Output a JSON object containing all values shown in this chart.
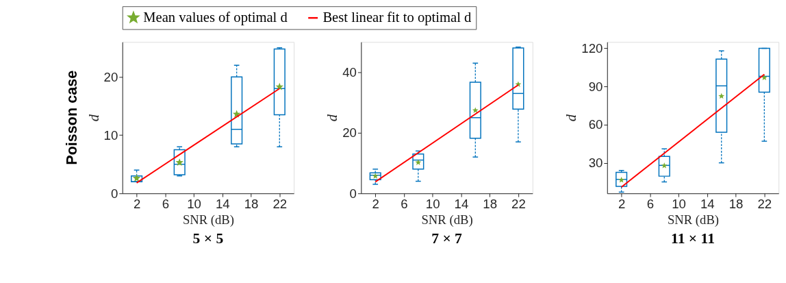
{
  "chart_data": [
    {
      "type": "box",
      "title": "5 × 5",
      "xlabel": "SNR (dB)",
      "ylabel": "d",
      "xlim": [
        0,
        24
      ],
      "ylim": [
        0,
        26
      ],
      "xticks": [
        2,
        6,
        10,
        14,
        18,
        22
      ],
      "yticks": [
        0,
        10,
        20
      ],
      "grid": false,
      "legend": "top",
      "annotations": [
        "Poisson case"
      ],
      "x": [
        2,
        8,
        16,
        22
      ],
      "series": [
        {
          "type": "box",
          "color": "#0072bd",
          "boxes": [
            {
              "low": 2,
              "q1": 2,
              "median": 2,
              "q3": 3,
              "high": 4
            },
            {
              "low": 3,
              "q1": 3.2,
              "median": 5,
              "q3": 7.5,
              "high": 8
            },
            {
              "low": 8,
              "q1": 8.5,
              "median": 11,
              "q3": 20,
              "high": 22
            },
            {
              "low": 8,
              "q1": 13.5,
              "median": 18,
              "q3": 24.8,
              "high": 25
            }
          ]
        },
        {
          "type": "scatter",
          "name": "Mean values of optimal d",
          "color": "#77ac30",
          "marker": "star",
          "x": [
            2,
            8,
            16,
            22
          ],
          "values": [
            2.6,
            5.3,
            13.6,
            18.3
          ]
        },
        {
          "type": "line",
          "name": "Best linear fit to optimal d",
          "color": "#ff0000",
          "line_style": "solid",
          "x": [
            2,
            22
          ],
          "values": [
            1.8,
            18
          ]
        }
      ]
    },
    {
      "type": "box",
      "title": "7 × 7",
      "xlabel": "SNR (dB)",
      "ylabel": "d",
      "xlim": [
        0,
        24
      ],
      "ylim": [
        0,
        50
      ],
      "xticks": [
        2,
        6,
        10,
        14,
        18,
        22
      ],
      "yticks": [
        0,
        20,
        40
      ],
      "grid": false,
      "x": [
        2,
        8,
        16,
        22
      ],
      "series": [
        {
          "type": "box",
          "color": "#0072bd",
          "boxes": [
            {
              "low": 3,
              "q1": 4.5,
              "median": 6,
              "q3": 6.8,
              "high": 8
            },
            {
              "low": 4,
              "q1": 8,
              "median": 11,
              "q3": 13,
              "high": 14
            },
            {
              "low": 12,
              "q1": 18.2,
              "median": 25,
              "q3": 36.7,
              "high": 43
            },
            {
              "low": 17,
              "q1": 27.8,
              "median": 33,
              "q3": 48,
              "high": 48.3
            }
          ]
        },
        {
          "type": "scatter",
          "color": "#77ac30",
          "marker": "star",
          "x": [
            2,
            8,
            16,
            22
          ],
          "values": [
            5.7,
            10.2,
            27.4,
            36
          ]
        },
        {
          "type": "line",
          "color": "#ff0000",
          "line_style": "solid",
          "x": [
            2,
            22
          ],
          "values": [
            3.8,
            35.8
          ]
        }
      ]
    },
    {
      "type": "box",
      "title": "11 × 11",
      "xlabel": "SNR (dB)",
      "ylabel": "d",
      "xlim": [
        0,
        24
      ],
      "ylim": [
        6,
        125
      ],
      "xticks": [
        2,
        6,
        10,
        14,
        18,
        22
      ],
      "yticks": [
        30,
        60,
        90,
        120
      ],
      "grid": false,
      "x": [
        2,
        8,
        16,
        22
      ],
      "series": [
        {
          "type": "box",
          "color": "#0072bd",
          "boxes": [
            {
              "low": 7,
              "q1": 11.5,
              "median": 17,
              "q3": 22.5,
              "high": 24
            },
            {
              "low": 15,
              "q1": 19.5,
              "median": 28,
              "q3": 35,
              "high": 41
            },
            {
              "low": 30,
              "q1": 54,
              "median": 90.5,
              "q3": 111.5,
              "high": 118
            },
            {
              "low": 47,
              "q1": 85.5,
              "median": 98,
              "q3": 120,
              "high": 120
            }
          ]
        },
        {
          "type": "scatter",
          "color": "#77ac30",
          "marker": "star",
          "x": [
            2,
            8,
            16,
            22
          ],
          "values": [
            16.5,
            27.8,
            82.4,
            97
          ]
        },
        {
          "type": "line",
          "color": "#ff0000",
          "line_style": "solid",
          "x": [
            2,
            22
          ],
          "values": [
            11,
            99.5
          ]
        }
      ]
    }
  ]
}
